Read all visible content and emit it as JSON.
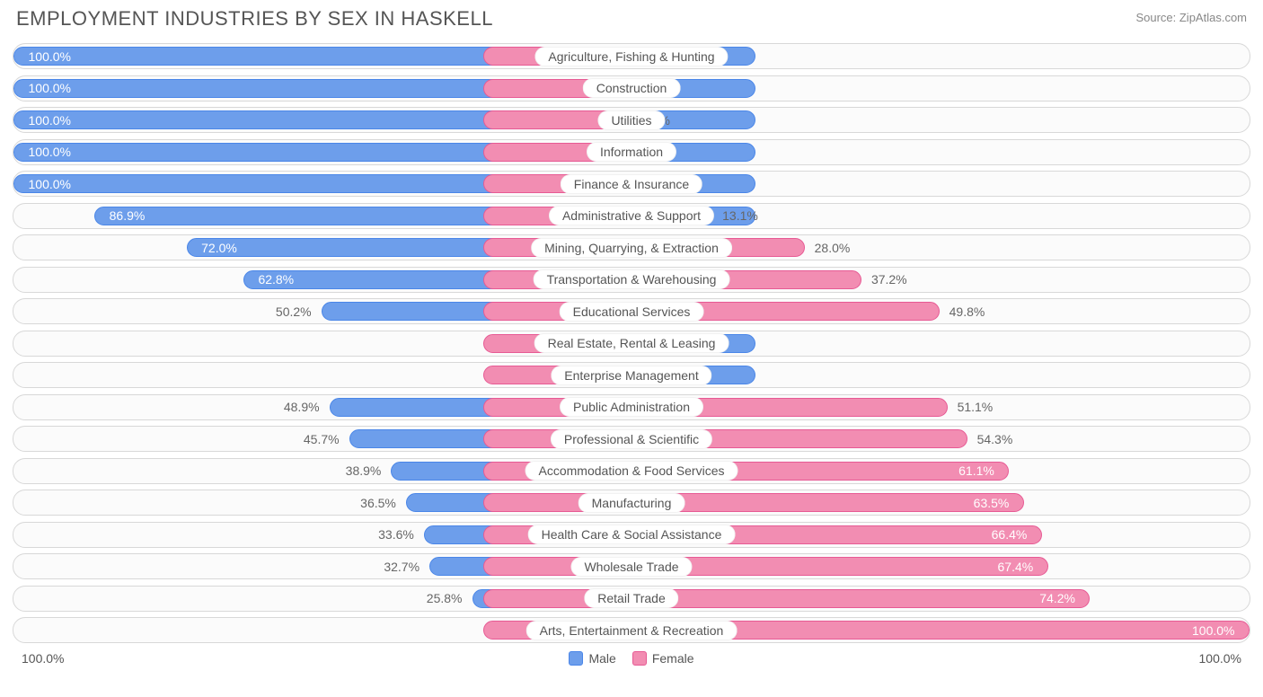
{
  "title": "EMPLOYMENT INDUSTRIES BY SEX IN HASKELL",
  "source": "Source: ZipAtlas.com",
  "axis_left": "100.0%",
  "axis_right": "100.0%",
  "legend": {
    "male": "Male",
    "female": "Female"
  },
  "colors": {
    "male_fill": "#6d9eeb",
    "male_border": "#4a86e8",
    "female_fill": "#f28db2",
    "female_border": "#e75a94",
    "track_bg": "#fbfbfb",
    "track_border": "#d8d8d8",
    "text_on_bar": "#ffffff",
    "text_off_bar": "#666666",
    "title_color": "#555555",
    "source_color": "#888888"
  },
  "chart": {
    "type": "diverging-bar",
    "male_bar_extra_pct": 10,
    "female_bar_extra_pct": 12,
    "label_inside_threshold": 55,
    "rows": [
      {
        "label": "Agriculture, Fishing & Hunting",
        "male": 100.0,
        "female": 0.0
      },
      {
        "label": "Construction",
        "male": 100.0,
        "female": 0.0
      },
      {
        "label": "Utilities",
        "male": 100.0,
        "female": 0.0
      },
      {
        "label": "Information",
        "male": 100.0,
        "female": 0.0
      },
      {
        "label": "Finance & Insurance",
        "male": 100.0,
        "female": 0.0
      },
      {
        "label": "Administrative & Support",
        "male": 86.9,
        "female": 13.1
      },
      {
        "label": "Mining, Quarrying, & Extraction",
        "male": 72.0,
        "female": 28.0
      },
      {
        "label": "Transportation & Warehousing",
        "male": 62.8,
        "female": 37.2
      },
      {
        "label": "Educational Services",
        "male": 50.2,
        "female": 49.8
      },
      {
        "label": "Real Estate, Rental & Leasing",
        "male": 0.0,
        "female": 0.0
      },
      {
        "label": "Enterprise Management",
        "male": 0.0,
        "female": 0.0
      },
      {
        "label": "Public Administration",
        "male": 48.9,
        "female": 51.1
      },
      {
        "label": "Professional & Scientific",
        "male": 45.7,
        "female": 54.3
      },
      {
        "label": "Accommodation & Food Services",
        "male": 38.9,
        "female": 61.1
      },
      {
        "label": "Manufacturing",
        "male": 36.5,
        "female": 63.5
      },
      {
        "label": "Health Care & Social Assistance",
        "male": 33.6,
        "female": 66.4
      },
      {
        "label": "Wholesale Trade",
        "male": 32.7,
        "female": 67.4
      },
      {
        "label": "Retail Trade",
        "male": 25.8,
        "female": 74.2
      },
      {
        "label": "Arts, Entertainment & Recreation",
        "male": 0.0,
        "female": 100.0
      }
    ]
  }
}
